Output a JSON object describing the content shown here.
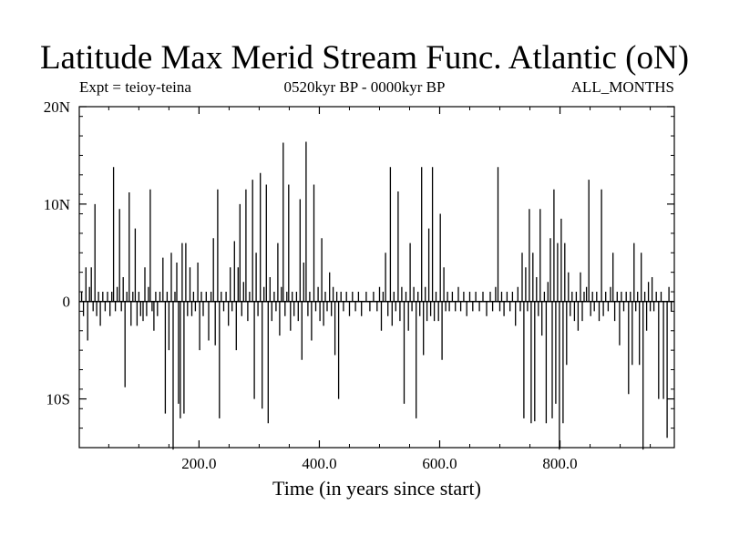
{
  "chart_data": {
    "type": "line",
    "title": "Latitude Max Merid Stream Func. Atlantic (oN)",
    "subtitle_left": "Expt = teioy-teina",
    "subtitle_center": "0520kyr BP - 0000kyr BP",
    "subtitle_right": "ALL_MONTHS",
    "xlabel": "Time (in years since start)",
    "ylabel": "",
    "xlim": [
      1,
      990
    ],
    "ylim": [
      -15,
      20
    ],
    "x_ticks": [
      200,
      400,
      600,
      800
    ],
    "x_tick_labels": [
      "200.0",
      "400.0",
      "600.0",
      "800.0"
    ],
    "y_ticks": [
      -10,
      0,
      10,
      20
    ],
    "y_tick_labels": [
      "10S",
      "0",
      "10N",
      "20N"
    ],
    "grid": false,
    "series": [
      {
        "color": "#000000",
        "spikes": [
          [
            5,
            1
          ],
          [
            8,
            -1.5
          ],
          [
            12,
            3.5
          ],
          [
            15,
            -4
          ],
          [
            18,
            1.5
          ],
          [
            21,
            3.5
          ],
          [
            24,
            -1
          ],
          [
            27,
            10
          ],
          [
            30,
            -1.5
          ],
          [
            33,
            1
          ],
          [
            36,
            -2.5
          ],
          [
            40,
            1
          ],
          [
            44,
            -1
          ],
          [
            48,
            1
          ],
          [
            52,
            -1.5
          ],
          [
            55,
            1
          ],
          [
            58,
            13.8
          ],
          [
            61,
            -1
          ],
          [
            64,
            1.5
          ],
          [
            68,
            9.5
          ],
          [
            71,
            -1
          ],
          [
            74,
            2.5
          ],
          [
            77,
            -8.8
          ],
          [
            80,
            1
          ],
          [
            84,
            11.2
          ],
          [
            87,
            -2.5
          ],
          [
            90,
            1
          ],
          [
            94,
            7.5
          ],
          [
            97,
            -2.5
          ],
          [
            100,
            1
          ],
          [
            103,
            -1.5
          ],
          [
            107,
            -2
          ],
          [
            110,
            3.5
          ],
          [
            113,
            -1.5
          ],
          [
            116,
            1.5
          ],
          [
            119,
            11.5
          ],
          [
            122,
            -1
          ],
          [
            125,
            -3
          ],
          [
            128,
            1
          ],
          [
            131,
            -1.5
          ],
          [
            135,
            1
          ],
          [
            140,
            4.5
          ],
          [
            144,
            -11.5
          ],
          [
            147,
            1
          ],
          [
            150,
            -5
          ],
          [
            154,
            5
          ],
          [
            157,
            -15.2
          ],
          [
            160,
            1
          ],
          [
            163,
            4
          ],
          [
            166,
            -10.5
          ],
          [
            169,
            -12
          ],
          [
            172,
            6
          ],
          [
            175,
            -11.5
          ],
          [
            178,
            6
          ],
          [
            181,
            -1.5
          ],
          [
            185,
            3.5
          ],
          [
            188,
            -1.5
          ],
          [
            191,
            1
          ],
          [
            194,
            -1
          ],
          [
            198,
            4
          ],
          [
            201,
            -5
          ],
          [
            204,
            1
          ],
          [
            207,
            -1.5
          ],
          [
            212,
            1
          ],
          [
            216,
            -4
          ],
          [
            220,
            1
          ],
          [
            224,
            6.5
          ],
          [
            227,
            -4.5
          ],
          [
            231,
            11.5
          ],
          [
            234,
            -12
          ],
          [
            237,
            1
          ],
          [
            241,
            -1
          ],
          [
            245,
            1
          ],
          [
            249,
            -2.5
          ],
          [
            252,
            3.5
          ],
          [
            255,
            -1
          ],
          [
            259,
            6.2
          ],
          [
            262,
            -5
          ],
          [
            265,
            3.5
          ],
          [
            268,
            10
          ],
          [
            271,
            -1.5
          ],
          [
            274,
            2
          ],
          [
            278,
            11.5
          ],
          [
            281,
            -2
          ],
          [
            284,
            1
          ],
          [
            289,
            12.5
          ],
          [
            292,
            -10
          ],
          [
            295,
            5
          ],
          [
            298,
            -1.5
          ],
          [
            302,
            13.2
          ],
          [
            305,
            -11
          ],
          [
            308,
            1.5
          ],
          [
            312,
            12
          ],
          [
            315,
            -12.5
          ],
          [
            318,
            2.5
          ],
          [
            321,
            -2
          ],
          [
            325,
            1
          ],
          [
            328,
            -1
          ],
          [
            331,
            6
          ],
          [
            334,
            -3.5
          ],
          [
            337,
            1.5
          ],
          [
            340,
            16.3
          ],
          [
            343,
            -1.5
          ],
          [
            346,
            1
          ],
          [
            349,
            12
          ],
          [
            352,
            -3
          ],
          [
            355,
            1
          ],
          [
            358,
            -1.5
          ],
          [
            362,
            1
          ],
          [
            365,
            -2
          ],
          [
            368,
            10.5
          ],
          [
            371,
            -6
          ],
          [
            374,
            4
          ],
          [
            378,
            16.4
          ],
          [
            381,
            -1.5
          ],
          [
            384,
            1
          ],
          [
            387,
            -4
          ],
          [
            391,
            12
          ],
          [
            394,
            -1
          ],
          [
            398,
            1.5
          ],
          [
            401,
            -2
          ],
          [
            404,
            6.5
          ],
          [
            407,
            -2.5
          ],
          [
            410,
            1
          ],
          [
            413,
            -1
          ],
          [
            417,
            3
          ],
          [
            420,
            -1.5
          ],
          [
            423,
            1.5
          ],
          [
            426,
            -5.5
          ],
          [
            429,
            1
          ],
          [
            432,
            -10
          ],
          [
            436,
            1
          ],
          [
            440,
            -1
          ],
          [
            445,
            1
          ],
          [
            450,
            -1.5
          ],
          [
            455,
            1
          ],
          [
            460,
            -1
          ],
          [
            465,
            1
          ],
          [
            470,
            -1.5
          ],
          [
            478,
            1
          ],
          [
            484,
            -1
          ],
          [
            490,
            1
          ],
          [
            496,
            -1
          ],
          [
            500,
            1.5
          ],
          [
            503,
            -3
          ],
          [
            506,
            1
          ],
          [
            510,
            5
          ],
          [
            514,
            -1.5
          ],
          [
            518,
            13.8
          ],
          [
            521,
            -2.5
          ],
          [
            524,
            1
          ],
          [
            527,
            -1
          ],
          [
            531,
            11.3
          ],
          [
            534,
            -2
          ],
          [
            537,
            1.5
          ],
          [
            541,
            -10.5
          ],
          [
            544,
            1
          ],
          [
            548,
            -3
          ],
          [
            551,
            6
          ],
          [
            554,
            -1
          ],
          [
            557,
            1.5
          ],
          [
            561,
            -12
          ],
          [
            564,
            1
          ],
          [
            567,
            -1.5
          ],
          [
            570,
            13.8
          ],
          [
            573,
            -5.5
          ],
          [
            576,
            1.5
          ],
          [
            579,
            -2
          ],
          [
            582,
            7.5
          ],
          [
            585,
            -1.5
          ],
          [
            588,
            13.8
          ],
          [
            591,
            -2
          ],
          [
            594,
            1
          ],
          [
            598,
            -2
          ],
          [
            601,
            9
          ],
          [
            604,
            -6
          ],
          [
            607,
            3.5
          ],
          [
            610,
            -1
          ],
          [
            613,
            1
          ],
          [
            616,
            -1
          ],
          [
            621,
            1
          ],
          [
            626,
            -1
          ],
          [
            631,
            1.5
          ],
          [
            635,
            -1
          ],
          [
            640,
            1
          ],
          [
            645,
            -1.5
          ],
          [
            650,
            1
          ],
          [
            655,
            -1
          ],
          [
            660,
            1
          ],
          [
            666,
            -1
          ],
          [
            672,
            1
          ],
          [
            678,
            -1.5
          ],
          [
            684,
            1
          ],
          [
            688,
            -1
          ],
          [
            693,
            1.5
          ],
          [
            697,
            13.8
          ],
          [
            700,
            -1
          ],
          [
            703,
            1
          ],
          [
            707,
            -1.5
          ],
          [
            712,
            1
          ],
          [
            717,
            -1
          ],
          [
            721,
            1
          ],
          [
            726,
            -2.5
          ],
          [
            730,
            1.5
          ],
          [
            734,
            -1
          ],
          [
            737,
            5
          ],
          [
            740,
            -12
          ],
          [
            743,
            3.5
          ],
          [
            746,
            -1
          ],
          [
            749,
            9.5
          ],
          [
            752,
            -12.5
          ],
          [
            755,
            5
          ],
          [
            758,
            -12.3
          ],
          [
            761,
            2.5
          ],
          [
            764,
            -1.5
          ],
          [
            767,
            9.5
          ],
          [
            770,
            -3.5
          ],
          [
            774,
            1
          ],
          [
            777,
            -12.5
          ],
          [
            780,
            2
          ],
          [
            784,
            6.5
          ],
          [
            787,
            -12
          ],
          [
            790,
            11.5
          ],
          [
            793,
            -10.5
          ],
          [
            796,
            6
          ],
          [
            799,
            -15.2
          ],
          [
            802,
            8.5
          ],
          [
            805,
            -12.5
          ],
          [
            808,
            6
          ],
          [
            811,
            -6.5
          ],
          [
            814,
            3
          ],
          [
            817,
            -1.5
          ],
          [
            820,
            1
          ],
          [
            824,
            -2
          ],
          [
            827,
            1
          ],
          [
            830,
            -3
          ],
          [
            834,
            3
          ],
          [
            837,
            -2
          ],
          [
            840,
            1
          ],
          [
            844,
            1.5
          ],
          [
            848,
            12.5
          ],
          [
            851,
            -1.5
          ],
          [
            854,
            1
          ],
          [
            857,
            -1
          ],
          [
            861,
            1
          ],
          [
            865,
            -2
          ],
          [
            869,
            11.5
          ],
          [
            872,
            -1.5
          ],
          [
            876,
            1
          ],
          [
            880,
            -1
          ],
          [
            884,
            1.5
          ],
          [
            888,
            5
          ],
          [
            891,
            -2
          ],
          [
            895,
            1
          ],
          [
            899,
            -4.5
          ],
          [
            902,
            1
          ],
          [
            906,
            -1
          ],
          [
            910,
            1
          ],
          [
            914,
            -9.5
          ],
          [
            917,
            1
          ],
          [
            920,
            -6.5
          ],
          [
            923,
            6
          ],
          [
            926,
            -1
          ],
          [
            929,
            1
          ],
          [
            932,
            -6.5
          ],
          [
            935,
            5
          ],
          [
            938,
            -15.2
          ],
          [
            941,
            1
          ],
          [
            944,
            -3
          ],
          [
            947,
            2
          ],
          [
            950,
            -1
          ],
          [
            953,
            2.5
          ],
          [
            956,
            -1
          ],
          [
            960,
            1
          ],
          [
            964,
            -10
          ],
          [
            968,
            1
          ],
          [
            972,
            -10
          ],
          [
            975,
            0
          ],
          [
            978,
            -14
          ],
          [
            981,
            1.5
          ],
          [
            985,
            -1
          ],
          [
            988,
            0
          ]
        ]
      }
    ]
  }
}
